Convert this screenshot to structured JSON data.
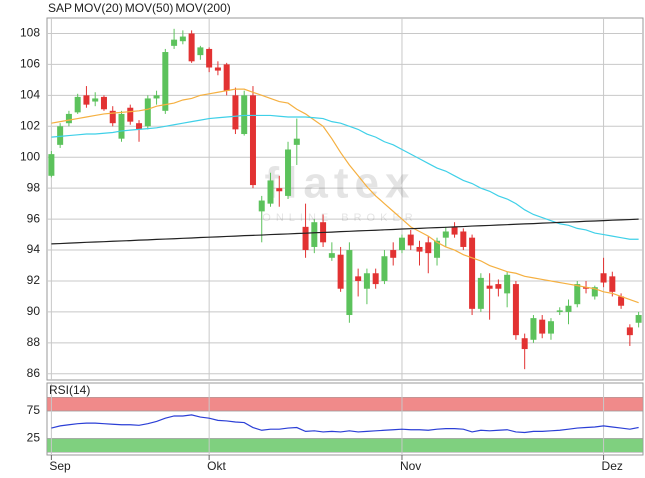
{
  "chart_data": [
    {
      "type": "candlestick",
      "watermark": "flatex",
      "watermark_subtitle": "ONLINE BROKER",
      "categories": [
        "Sep",
        null,
        null,
        null,
        null,
        null,
        null,
        null,
        null,
        null,
        null,
        null,
        null,
        null,
        null,
        null,
        null,
        null,
        "Okt",
        null,
        null,
        null,
        null,
        null,
        null,
        null,
        null,
        null,
        null,
        null,
        null,
        null,
        null,
        null,
        null,
        null,
        null,
        null,
        null,
        null,
        "Nov",
        null,
        null,
        null,
        null,
        null,
        null,
        null,
        null,
        null,
        null,
        null,
        null,
        null,
        null,
        null,
        null,
        null,
        null,
        null,
        null,
        null,
        null,
        "Dez",
        null,
        null,
        null,
        null
      ],
      "ylim": [
        85.6,
        109
      ],
      "yticks": [
        86,
        88,
        90,
        92,
        94,
        96,
        98,
        100,
        102,
        104,
        106,
        108
      ],
      "grid": true,
      "series": [
        {
          "name": "SAP",
          "color_up": "#5cc25c",
          "color_down": "#e23232",
          "open": [
            98.8,
            100.8,
            102.2,
            102.9,
            104.0,
            103.6,
            103.9,
            103.0,
            101.2,
            103.2,
            102.2,
            102.0,
            103.8,
            103.0,
            107.2,
            107.5,
            108.0,
            106.6,
            107.0,
            105.8,
            106.0,
            104.0,
            101.5,
            104.0,
            96.5,
            97.0,
            98.0,
            97.5,
            100.8,
            95.5,
            94.2,
            95.8,
            93.5,
            93.7,
            89.8,
            92.3,
            91.5,
            92.5,
            92.0,
            94.0,
            94.0,
            95.0,
            94.2,
            94.5,
            93.5,
            94.8,
            95.5,
            95.2,
            94.8,
            90.2,
            91.7,
            91.8,
            91.2,
            91.8,
            88.3,
            88.2,
            89.5,
            88.6,
            90.0,
            90.0,
            90.5,
            91.6,
            91.0,
            92.5,
            92.3,
            91.0,
            89.0,
            89.3
          ],
          "high": [
            100.4,
            102.2,
            103.0,
            104.1,
            104.6,
            104.2,
            104.0,
            103.3,
            103.0,
            103.4,
            102.4,
            104.0,
            104.3,
            107.0,
            108.3,
            108.2,
            108.2,
            107.2,
            107.1,
            106.2,
            106.1,
            104.5,
            104.3,
            104.6,
            97.5,
            99.0,
            98.8,
            101.0,
            102.5,
            97.0,
            96.0,
            96.3,
            94.5,
            94.2,
            94.5,
            92.8,
            92.8,
            92.8,
            94.0,
            94.5,
            95.0,
            95.3,
            94.6,
            94.9,
            94.8,
            95.5,
            95.8,
            95.4,
            95.0,
            92.5,
            92.5,
            92.1,
            92.6,
            92.0,
            88.6,
            89.8,
            89.8,
            89.6,
            90.3,
            90.8,
            92.0,
            92.0,
            91.7,
            93.5,
            92.6,
            91.2,
            89.2,
            90.0
          ],
          "low": [
            98.7,
            100.6,
            102.0,
            102.8,
            103.2,
            103.3,
            103.0,
            102.0,
            101.0,
            102.1,
            101.0,
            101.8,
            103.4,
            102.8,
            107.0,
            107.3,
            106.1,
            106.3,
            105.5,
            105.3,
            104.0,
            101.5,
            101.4,
            98.0,
            94.5,
            96.8,
            96.8,
            97.3,
            99.5,
            93.5,
            93.8,
            94.2,
            93.3,
            91.3,
            89.3,
            91.0,
            90.5,
            91.5,
            91.8,
            93.0,
            93.8,
            94.0,
            93.0,
            92.5,
            93.0,
            94.2,
            94.8,
            94.0,
            89.8,
            90.0,
            89.5,
            91.0,
            90.3,
            88.2,
            86.3,
            88.0,
            88.3,
            88.2,
            89.8,
            89.2,
            90.3,
            91.2,
            90.8,
            91.6,
            91.0,
            90.2,
            87.8,
            89.0
          ],
          "close": [
            100.2,
            102.0,
            102.8,
            103.9,
            103.4,
            103.8,
            103.1,
            102.2,
            102.8,
            102.3,
            101.8,
            103.8,
            104.0,
            106.8,
            107.6,
            107.8,
            106.2,
            107.1,
            105.8,
            105.6,
            104.3,
            101.8,
            104.0,
            98.2,
            97.2,
            98.5,
            97.8,
            100.5,
            101.2,
            94.0,
            95.8,
            94.5,
            93.8,
            91.5,
            94.0,
            92.0,
            92.5,
            91.8,
            93.6,
            93.5,
            94.8,
            94.3,
            93.9,
            93.8,
            94.6,
            95.2,
            95.0,
            94.2,
            90.2,
            92.2,
            91.5,
            91.5,
            92.4,
            88.5,
            87.6,
            89.6,
            88.6,
            89.4,
            90.1,
            90.4,
            91.8,
            91.5,
            91.6,
            91.9,
            91.3,
            90.4,
            88.5,
            89.8
          ]
        },
        {
          "name": "MOV(20)",
          "color": "#f5b041",
          "values": [
            102.2,
            102.3,
            102.4,
            102.5,
            102.6,
            102.7,
            102.8,
            102.85,
            102.9,
            102.95,
            103.0,
            103.1,
            103.3,
            103.4,
            103.5,
            103.7,
            103.8,
            104.0,
            104.1,
            104.2,
            104.3,
            104.4,
            104.4,
            104.2,
            104.0,
            103.8,
            103.6,
            103.5,
            103.1,
            102.8,
            102.4,
            102.0,
            101.2,
            100.3,
            99.5,
            98.8,
            98.1,
            97.5,
            97.0,
            96.5,
            96.0,
            95.5,
            95.2,
            94.9,
            94.5,
            94.2,
            94.0,
            93.7,
            93.5,
            93.3,
            93.0,
            92.8,
            92.6,
            92.5,
            92.3,
            92.2,
            92.1,
            92.0,
            91.9,
            91.8,
            91.7,
            91.6,
            91.5,
            91.3,
            91.2,
            91.0,
            90.8,
            90.6
          ]
        },
        {
          "name": "MOV(50)",
          "color": "#3fd0e8",
          "values": [
            101.3,
            101.35,
            101.4,
            101.45,
            101.5,
            101.5,
            101.55,
            101.6,
            101.7,
            101.75,
            101.8,
            101.85,
            101.9,
            102.0,
            102.1,
            102.2,
            102.3,
            102.4,
            102.5,
            102.55,
            102.6,
            102.65,
            102.7,
            102.7,
            102.7,
            102.7,
            102.65,
            102.6,
            102.6,
            102.6,
            102.55,
            102.5,
            102.3,
            102.2,
            102.0,
            101.8,
            101.5,
            101.3,
            101.0,
            100.8,
            100.5,
            100.2,
            99.9,
            99.6,
            99.3,
            99.1,
            98.8,
            98.5,
            98.3,
            98.0,
            97.8,
            97.5,
            97.3,
            97.0,
            96.6,
            96.3,
            96.1,
            95.9,
            95.7,
            95.6,
            95.4,
            95.3,
            95.1,
            95.0,
            94.9,
            94.8,
            94.7,
            94.7
          ]
        },
        {
          "name": "MOV(200)",
          "color": "#222222",
          "values": [
            94.4,
            94.42,
            94.45,
            94.47,
            94.5,
            94.52,
            94.54,
            94.57,
            94.59,
            94.61,
            94.64,
            94.66,
            94.69,
            94.71,
            94.73,
            94.76,
            94.78,
            94.81,
            94.83,
            94.85,
            94.88,
            94.9,
            94.93,
            94.95,
            94.97,
            95.0,
            95.02,
            95.04,
            95.07,
            95.09,
            95.12,
            95.14,
            95.16,
            95.19,
            95.21,
            95.24,
            95.26,
            95.28,
            95.31,
            95.33,
            95.36,
            95.38,
            95.4,
            95.43,
            95.45,
            95.47,
            95.5,
            95.52,
            95.55,
            95.57,
            95.59,
            95.62,
            95.64,
            95.67,
            95.69,
            95.71,
            95.74,
            95.76,
            95.79,
            95.81,
            95.83,
            95.86,
            95.88,
            95.9,
            95.93,
            95.95,
            95.97,
            96.0
          ]
        }
      ]
    },
    {
      "type": "line",
      "title": "RSI(14)",
      "color": "#2b3fd6",
      "ylim": [
        -5,
        126
      ],
      "yticks": [
        25,
        75
      ],
      "bands": [
        {
          "from": 75,
          "to": 100,
          "color": "#f08a8a"
        },
        {
          "from": 0,
          "to": 25,
          "color": "#7fd07f"
        }
      ],
      "values": [
        44,
        48,
        50,
        52,
        53,
        53,
        52,
        51,
        50,
        50,
        49,
        52,
        56,
        62,
        66,
        66,
        68,
        64,
        62,
        58,
        57,
        55,
        54,
        45,
        40,
        42,
        42,
        44,
        45,
        38,
        39,
        37,
        38,
        37,
        39,
        37,
        38,
        39,
        40,
        41,
        42,
        41,
        41,
        40,
        42,
        43,
        43,
        42,
        37,
        40,
        39,
        40,
        41,
        37,
        36,
        38,
        38,
        39,
        40,
        42,
        44,
        45,
        46,
        48,
        46,
        44,
        42,
        45
      ]
    }
  ]
}
